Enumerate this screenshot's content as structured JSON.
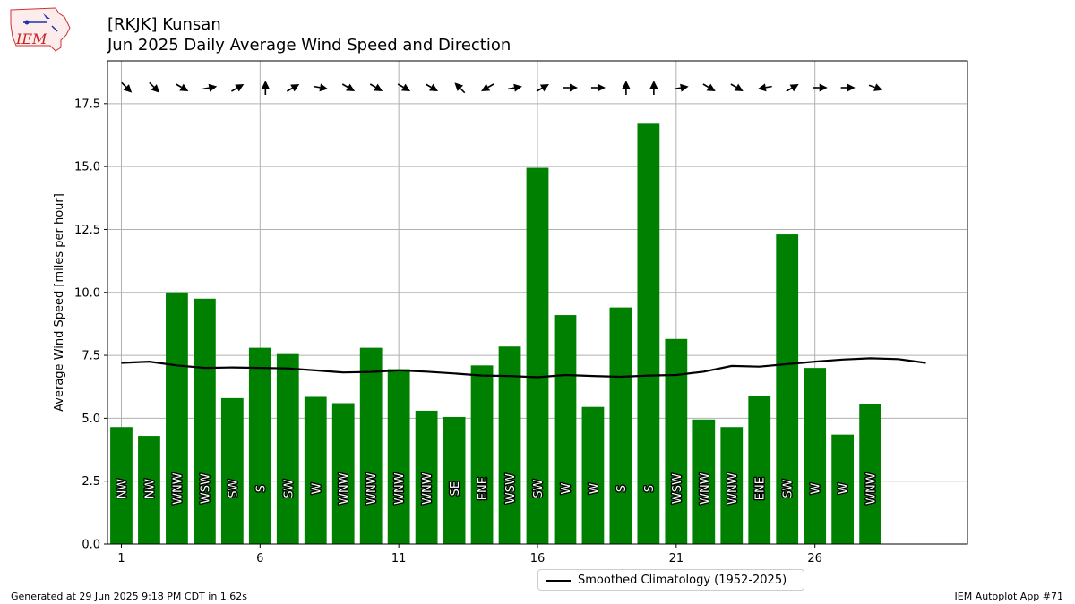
{
  "logo": {
    "text": "IEM"
  },
  "header": {
    "title_line1": "[RKJK] Kunsan",
    "title_line2": "Jun 2025 Daily Average Wind Speed and Direction"
  },
  "footer": {
    "left": "Generated at 29 Jun 2025 9:18 PM CDT in 1.62s",
    "right": "IEM Autoplot App #71"
  },
  "legend": {
    "label": "Smoothed Climatology (1952-2025)"
  },
  "chart_data": {
    "type": "bar",
    "ylabel": "Average Wind Speed [miles per hour]",
    "xlabel": "",
    "ylim": [
      0,
      19.2
    ],
    "xlim": [
      0.5,
      31.5
    ],
    "y_ticks": [
      "0.0",
      "2.5",
      "5.0",
      "7.5",
      "10.0",
      "12.5",
      "15.0",
      "17.5"
    ],
    "x_ticks": [
      "1",
      "6",
      "11",
      "16",
      "21",
      "26"
    ],
    "grid": true,
    "bar_color": "#008000",
    "days": [
      1,
      2,
      3,
      4,
      5,
      6,
      7,
      8,
      9,
      10,
      11,
      12,
      13,
      14,
      15,
      16,
      17,
      18,
      19,
      20,
      21,
      22,
      23,
      24,
      25,
      26,
      27,
      28
    ],
    "speeds": [
      4.65,
      4.3,
      10.0,
      9.75,
      5.8,
      7.8,
      7.55,
      5.85,
      5.6,
      7.8,
      6.95,
      5.3,
      5.05,
      7.1,
      7.85,
      14.95,
      9.1,
      5.45,
      9.4,
      16.7,
      8.15,
      4.95,
      4.65,
      5.9,
      12.3,
      7.0,
      4.35,
      5.55
    ],
    "directions": [
      "NW",
      "NW",
      "WNW",
      "WSW",
      "SW",
      "S",
      "SW",
      "W",
      "WNW",
      "WNW",
      "WNW",
      "WNW",
      "SE",
      "ENE",
      "WSW",
      "SW",
      "W",
      "W",
      "S",
      "S",
      "WSW",
      "WNW",
      "WNW",
      "ENE",
      "SW",
      "W",
      "W",
      "WNW"
    ],
    "arrow_headings_deg": [
      135,
      135,
      120,
      80,
      60,
      0,
      60,
      100,
      120,
      120,
      120,
      120,
      315,
      240,
      80,
      60,
      90,
      90,
      0,
      0,
      80,
      120,
      120,
      260,
      60,
      90,
      90,
      110
    ],
    "climatology": {
      "name": "Smoothed Climatology (1952-2025)",
      "color": "#000000",
      "days": [
        1,
        2,
        3,
        4,
        5,
        6,
        7,
        8,
        9,
        10,
        11,
        12,
        13,
        14,
        15,
        16,
        17,
        18,
        19,
        20,
        21,
        22,
        23,
        24,
        25,
        26,
        27,
        28,
        29,
        30
      ],
      "values": [
        7.2,
        7.25,
        7.1,
        7.0,
        7.02,
        7.0,
        6.98,
        6.9,
        6.82,
        6.84,
        6.9,
        6.85,
        6.78,
        6.7,
        6.68,
        6.63,
        6.72,
        6.68,
        6.65,
        6.7,
        6.72,
        6.85,
        7.08,
        7.05,
        7.15,
        7.25,
        7.33,
        7.38,
        7.35,
        7.2
      ]
    }
  }
}
